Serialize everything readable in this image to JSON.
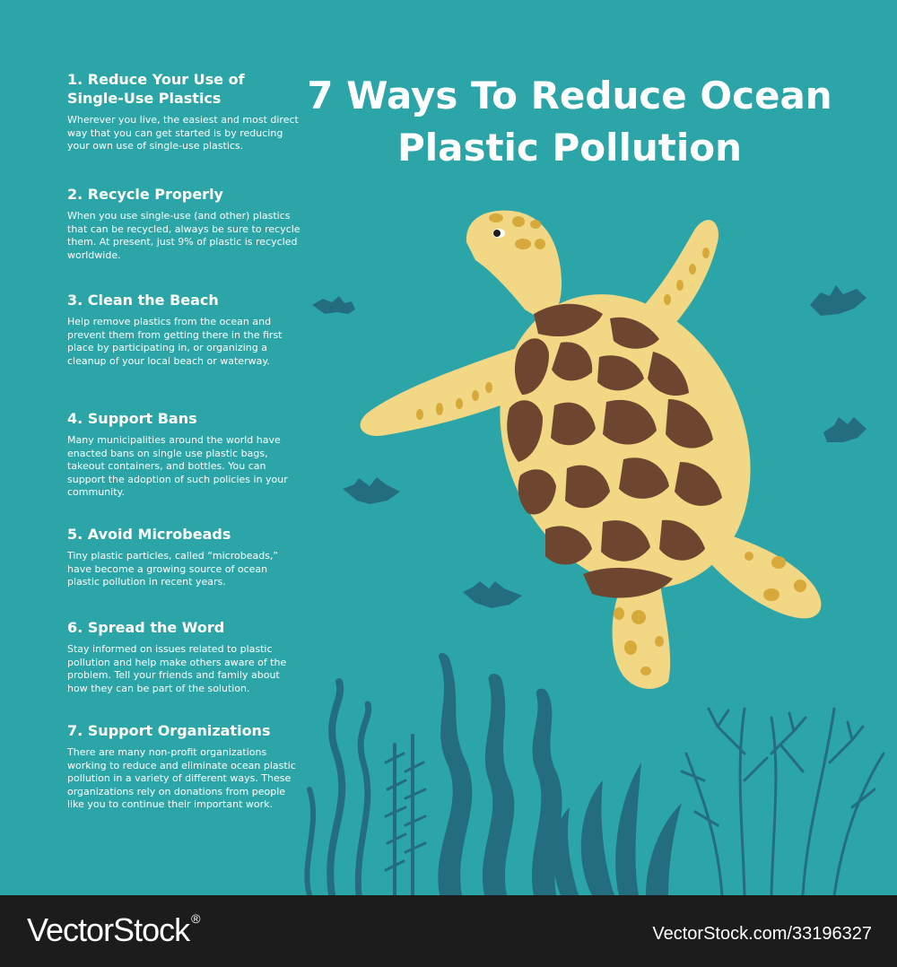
{
  "title": "7 Ways To Reduce Ocean Plastic Pollution",
  "tips": [
    {
      "heading": "1. Reduce Your Use of Single-Use Plastics",
      "body": "Wherever you live, the easiest and most direct way that you can get started is by reducing your own use of single-use plastics."
    },
    {
      "heading": "2. Recycle Properly",
      "body": "When you use single-use (and other) plastics that can be recycled, always be sure to recycle them. At present, just 9% of plastic is recycled worldwide."
    },
    {
      "heading": "3. Clean the Beach",
      "body": "Help remove plastics from the ocean and prevent them from getting there in the first place by participating in, or organizing a cleanup of your local beach or waterway."
    },
    {
      "heading": "4. Support Bans",
      "body": "Many municipalities around the world have enacted bans on single use plastic bags, takeout containers, and bottles. You can support the adoption of such policies in your community."
    },
    {
      "heading": "5. Avoid Microbeads",
      "body": "Tiny plastic particles, called “microbeads,” have become a growing source of ocean plastic pollution in recent years."
    },
    {
      "heading": "6. Spread the Word",
      "body": "Stay informed on issues related to plastic pollution and help make others aware of the problem. Tell your friends and family about how they can be part of the solution."
    },
    {
      "heading": "7. Support Organizations",
      "body": "There are many non-profit organizations working to reduce and eliminate ocean plastic pollution in a variety of different ways. These organizations rely on donations from people like you to continue their important work."
    }
  ],
  "footer": {
    "brand": "VectorStock",
    "brand_mark": "®",
    "image_id": "VectorStock.com/33196327"
  },
  "colors": {
    "background": "#2ca5a8",
    "seaweed": "#246d7f",
    "turtle_skin": "#f2d785",
    "turtle_spots": "#d6a93a",
    "shell_plates": "#6e4630",
    "footer": "#1c1c1c"
  },
  "icons": [
    "sea-turtle-illustration",
    "seaweed-illustration",
    "coral-illustration",
    "fish-icon"
  ]
}
